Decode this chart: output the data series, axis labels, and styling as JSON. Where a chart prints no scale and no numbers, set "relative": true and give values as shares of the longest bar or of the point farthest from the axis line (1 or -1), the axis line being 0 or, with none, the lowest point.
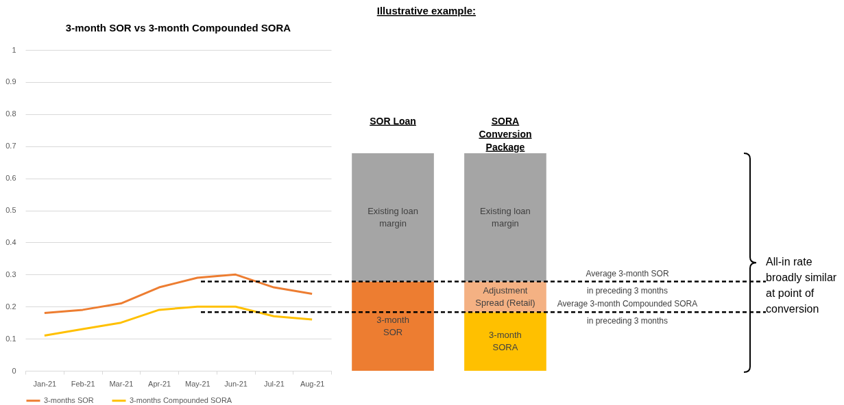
{
  "chart_data": [
    {
      "type": "line",
      "title": "3-month SOR vs 3-month Compounded SORA",
      "categories": [
        "Jan-21",
        "Feb-21",
        "Mar-21",
        "Apr-21",
        "May-21",
        "Jun-21",
        "Jul-21",
        "Aug-21"
      ],
      "series": [
        {
          "name": "3-months SOR",
          "color": "#ed7d31",
          "values": [
            0.18,
            0.19,
            0.21,
            0.26,
            0.29,
            0.3,
            0.26,
            0.24
          ]
        },
        {
          "name": "3-months Compounded SORA",
          "color": "#ffc000",
          "values": [
            0.11,
            0.13,
            0.15,
            0.19,
            0.2,
            0.2,
            0.17,
            0.16
          ]
        }
      ],
      "ylim": [
        0,
        1
      ],
      "yticks": [
        0,
        0.1,
        0.2,
        0.3,
        0.4,
        0.5,
        0.6,
        0.7,
        0.8,
        0.9,
        1
      ],
      "grid": "y",
      "legend": "bottom"
    },
    {
      "type": "bar",
      "stacked": true,
      "relative": true,
      "title": "Illustrative example:",
      "categories": [
        "SOR Loan",
        "SORA\nConversion\nPackage"
      ],
      "series": [
        {
          "name": "3-month\nSOR",
          "color": "#ed7d31",
          "values": [
            0.41,
            null
          ]
        },
        {
          "name": "3-month\nSORA",
          "color": "#ffc000",
          "values": [
            null,
            0.27
          ]
        },
        {
          "name": "Adjustment\nSpread (Retail)",
          "color": "#f4b183",
          "values": [
            null,
            0.14
          ]
        },
        {
          "name": "Existing loan\nmargin",
          "color": "#a5a5a5",
          "values": [
            0.59,
            0.59
          ]
        }
      ],
      "ref_lines": [
        {
          "axis": "y",
          "value": 0.41,
          "label": "Average 3-month SOR\nin preceding 3 months",
          "color": "#000000",
          "line_style": "dashed"
        },
        {
          "axis": "y",
          "value": 0.27,
          "label": "Average 3-month Compounded SORA\nin preceding 3 months",
          "color": "#000000",
          "line_style": "dashed"
        }
      ],
      "annotations": [
        "All-in rate\nbroadly similar\nat point of\nconversion"
      ]
    }
  ]
}
